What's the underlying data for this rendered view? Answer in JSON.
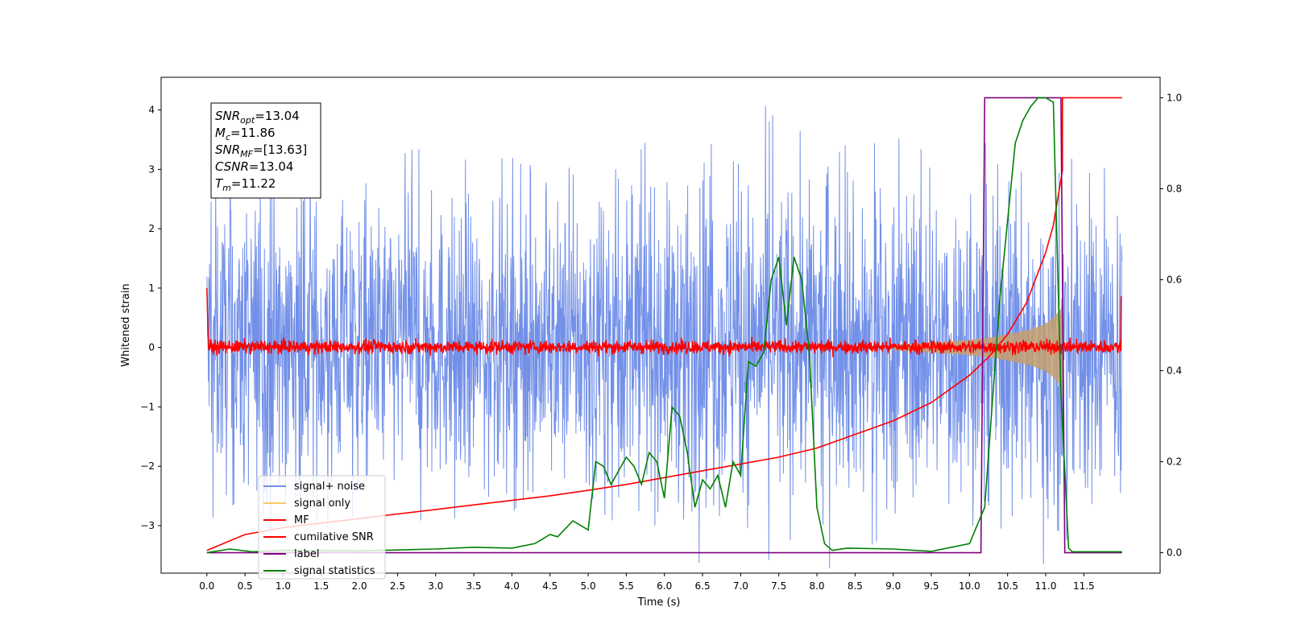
{
  "chart_data": {
    "type": "line",
    "xlabel": "Time (s)",
    "ylabel": "Whitened strain",
    "xlim": [
      -0.6,
      12.5
    ],
    "ylim": [
      -3.8,
      4.55
    ],
    "y2lim": [
      -0.045,
      1.045
    ],
    "x_ticks": [
      "0.0",
      "0.5",
      "1.0",
      "1.5",
      "2.0",
      "2.5",
      "3.0",
      "3.5",
      "4.0",
      "4.5",
      "5.0",
      "5.5",
      "6.0",
      "6.5",
      "7.0",
      "7.5",
      "8.0",
      "8.5",
      "9.0",
      "9.5",
      "10.0",
      "10.5",
      "11.0",
      "11.5"
    ],
    "x_tick_values": [
      0,
      0.5,
      1,
      1.5,
      2,
      2.5,
      3,
      3.5,
      4,
      4.5,
      5,
      5.5,
      6,
      6.5,
      7,
      7.5,
      8,
      8.5,
      9,
      9.5,
      10,
      10.5,
      11,
      11.5
    ],
    "y_ticks": [
      "−3",
      "−2",
      "−1",
      "0",
      "1",
      "2",
      "3",
      "4"
    ],
    "y_tick_values": [
      -3,
      -2,
      -1,
      0,
      1,
      2,
      3,
      4
    ],
    "y2_ticks": [
      "0.0",
      "0.2",
      "0.4",
      "0.6",
      "0.8",
      "1.0"
    ],
    "y2_tick_values": [
      0,
      0.2,
      0.4,
      0.6,
      0.8,
      1.0
    ],
    "grid": false,
    "legend_position": "lower-left",
    "annotation": [
      {
        "sym": "SNR",
        "sub": "opt",
        "value": "=13.04"
      },
      {
        "sym": "M",
        "sub": "c",
        "value": "=11.86"
      },
      {
        "sym": "SNR",
        "sub": "MF",
        "value": "=[13.63]"
      },
      {
        "sym": "CSNR",
        "sub": "",
        "value": "=13.04"
      },
      {
        "sym": "T",
        "sub": "m",
        "value": "=11.22"
      }
    ],
    "series": [
      {
        "name": "signal+ noise",
        "color": "#7290e8",
        "axis": "left",
        "style": "noise band",
        "x": [
          0,
          1,
          2,
          3,
          4,
          5,
          6,
          7,
          7.5,
          8,
          9,
          10,
          11,
          12
        ],
        "upper": [
          2.1,
          2.2,
          2.1,
          2.1,
          2.0,
          2.1,
          2.2,
          2.4,
          2.5,
          2.3,
          2.2,
          2.3,
          2.3,
          2.2
        ],
        "lower": [
          -2.0,
          -2.1,
          -2.0,
          -2.0,
          -2.0,
          -2.0,
          -2.1,
          -2.2,
          -2.3,
          -2.1,
          -2.1,
          -2.2,
          -2.4,
          -2.3
        ]
      },
      {
        "name": "signal only",
        "color": "#f5c86b",
        "axis": "left",
        "style": "chirp envelope",
        "x": [
          9.0,
          9.5,
          10.0,
          10.3,
          10.5,
          10.8,
          11.0,
          11.1,
          11.2,
          11.22
        ],
        "amplitude": [
          0.05,
          0.08,
          0.13,
          0.17,
          0.22,
          0.3,
          0.4,
          0.5,
          0.65,
          0.9
        ]
      },
      {
        "name": "MF",
        "color": "#ff0000",
        "axis": "left",
        "style": "noise band",
        "x": [
          0,
          12
        ],
        "upper": [
          0.12,
          0.12
        ],
        "lower": [
          -0.1,
          -0.1
        ]
      },
      {
        "name": "cumilative SNR",
        "color": "#ff0000",
        "axis": "right",
        "x": [
          0,
          0.5,
          1,
          1.5,
          2,
          2.5,
          3,
          3.5,
          4,
          4.5,
          5,
          5.5,
          6,
          6.5,
          7,
          7.5,
          8,
          8.5,
          9,
          9.5,
          10,
          10.25,
          10.5,
          10.75,
          11,
          11.1,
          11.22,
          11.22,
          12
        ],
        "y": [
          0.005,
          0.04,
          0.055,
          0.065,
          0.075,
          0.085,
          0.095,
          0.105,
          0.115,
          0.125,
          0.137,
          0.15,
          0.165,
          0.18,
          0.195,
          0.21,
          0.23,
          0.26,
          0.29,
          0.33,
          0.39,
          0.43,
          0.48,
          0.55,
          0.66,
          0.72,
          0.84,
          1.0,
          1.0
        ]
      },
      {
        "name": "label",
        "color": "#800080",
        "axis": "right",
        "x": [
          0,
          10.15,
          10.2,
          11.2,
          11.25,
          12
        ],
        "y": [
          0,
          0,
          1,
          1,
          0,
          0
        ]
      },
      {
        "name": "signal statistics",
        "color": "#008000",
        "axis": "right",
        "x": [
          0,
          0.3,
          0.6,
          1.0,
          2.0,
          3.0,
          3.5,
          4.0,
          4.3,
          4.45,
          4.5,
          4.6,
          4.8,
          4.9,
          5.0,
          5.1,
          5.2,
          5.3,
          5.4,
          5.5,
          5.6,
          5.7,
          5.8,
          5.9,
          6.0,
          6.1,
          6.2,
          6.3,
          6.4,
          6.5,
          6.6,
          6.7,
          6.8,
          6.9,
          7.0,
          7.1,
          7.2,
          7.3,
          7.4,
          7.5,
          7.6,
          7.7,
          7.8,
          7.9,
          8.0,
          8.1,
          8.2,
          8.4,
          9.0,
          9.5,
          10.0,
          10.2,
          10.4,
          10.6,
          10.7,
          10.8,
          10.9,
          11.0,
          11.1,
          11.2,
          11.3,
          11.35,
          12.0
        ],
        "y": [
          0,
          0.008,
          0.002,
          0.005,
          0.004,
          0.008,
          0.012,
          0.01,
          0.02,
          0.035,
          0.04,
          0.035,
          0.07,
          0.06,
          0.05,
          0.2,
          0.19,
          0.15,
          0.18,
          0.21,
          0.19,
          0.15,
          0.22,
          0.2,
          0.12,
          0.32,
          0.3,
          0.22,
          0.1,
          0.16,
          0.14,
          0.17,
          0.1,
          0.2,
          0.17,
          0.42,
          0.41,
          0.44,
          0.6,
          0.65,
          0.5,
          0.65,
          0.6,
          0.44,
          0.1,
          0.02,
          0.005,
          0.01,
          0.008,
          0.003,
          0.02,
          0.1,
          0.56,
          0.9,
          0.95,
          0.98,
          1.0,
          1.0,
          0.99,
          0.35,
          0.01,
          0.002,
          0.002
        ]
      }
    ]
  }
}
